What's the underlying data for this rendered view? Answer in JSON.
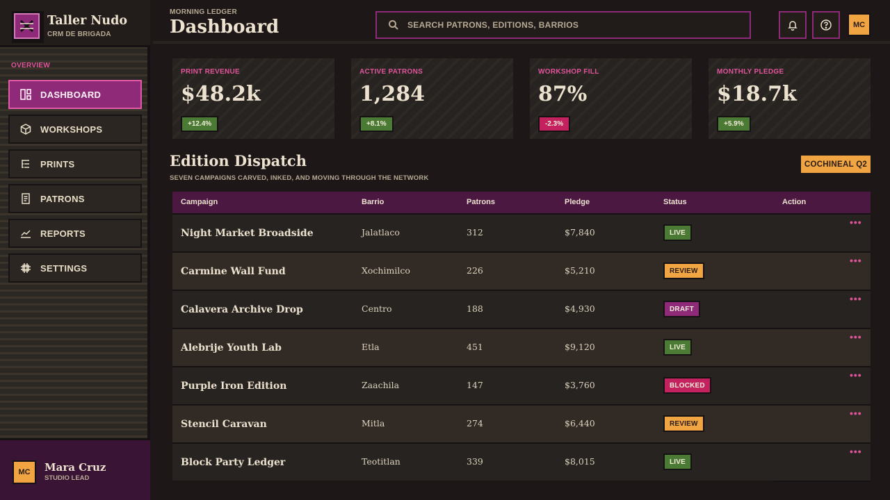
{
  "brand": {
    "name": "Taller Nudo",
    "sub": "CRM DE BRIGADA"
  },
  "nav": {
    "section": "OVERVIEW",
    "items": [
      {
        "label": "DASHBOARD",
        "icon": "dashboard-icon",
        "active": true
      },
      {
        "label": "WORKSHOPS",
        "icon": "cube-icon",
        "active": false
      },
      {
        "label": "PRINTS",
        "icon": "list-tree-icon",
        "active": false
      },
      {
        "label": "PATRONS",
        "icon": "document-icon",
        "active": false
      },
      {
        "label": "REPORTS",
        "icon": "chart-line-icon",
        "active": false
      },
      {
        "label": "SETTINGS",
        "icon": "grid-gear-icon",
        "active": false
      }
    ]
  },
  "user": {
    "initials": "MC",
    "name": "Mara Cruz",
    "role": "STUDIO LEAD"
  },
  "header": {
    "kicker": "MORNING LEDGER",
    "title": "Dashboard"
  },
  "search": {
    "placeholder": "SEARCH PATRONS, EDITIONS, BARRIOS",
    "value": ""
  },
  "topbar": {
    "avatar_initials": "MC"
  },
  "stats": [
    {
      "label": "PRINT REVENUE",
      "value": "$48.2k",
      "delta": "+12.4%",
      "trend": "up"
    },
    {
      "label": "ACTIVE PATRONS",
      "value": "1,284",
      "delta": "+8.1%",
      "trend": "up"
    },
    {
      "label": "WORKSHOP FILL",
      "value": "87%",
      "delta": "-2.3%",
      "trend": "down"
    },
    {
      "label": "MONTHLY PLEDGE",
      "value": "$18.7k",
      "delta": "+5.9%",
      "trend": "up"
    }
  ],
  "section": {
    "title": "Edition Dispatch",
    "subtitle": "SEVEN CAMPAIGNS CARVED, INKED, AND MOVING THROUGH THE NETWORK",
    "chip": "COCHINEAL Q2"
  },
  "table": {
    "columns": [
      "Campaign",
      "Barrio",
      "Patrons",
      "Pledge",
      "Status",
      "Action"
    ],
    "rows": [
      {
        "campaign": "Night Market Broadside",
        "barrio": "Jalatlaco",
        "patrons": "312",
        "pledge": "$7,840",
        "status": "LIVE"
      },
      {
        "campaign": "Carmine Wall Fund",
        "barrio": "Xochimilco",
        "patrons": "226",
        "pledge": "$5,210",
        "status": "REVIEW"
      },
      {
        "campaign": "Calavera Archive Drop",
        "barrio": "Centro",
        "patrons": "188",
        "pledge": "$4,930",
        "status": "DRAFT"
      },
      {
        "campaign": "Alebrije Youth Lab",
        "barrio": "Etla",
        "patrons": "451",
        "pledge": "$9,120",
        "status": "LIVE"
      },
      {
        "campaign": "Purple Iron Edition",
        "barrio": "Zaachila",
        "patrons": "147",
        "pledge": "$3,760",
        "status": "BLOCKED"
      },
      {
        "campaign": "Stencil Caravan",
        "barrio": "Mitla",
        "patrons": "274",
        "pledge": "$6,440",
        "status": "REVIEW"
      },
      {
        "campaign": "Block Party Ledger",
        "barrio": "Teotitlan",
        "patrons": "339",
        "pledge": "$8,015",
        "status": "LIVE"
      }
    ],
    "action_glyph": "•••"
  },
  "colors": {
    "accent": "#8e2a78",
    "pink": "#e0549a",
    "amber": "#f0a442",
    "live": "#4a7a34",
    "review": "#f0a442",
    "draft": "#8e2a78",
    "blocked": "#c4215f",
    "delta_up": "#4a7a34",
    "delta_down": "#c4215f"
  }
}
